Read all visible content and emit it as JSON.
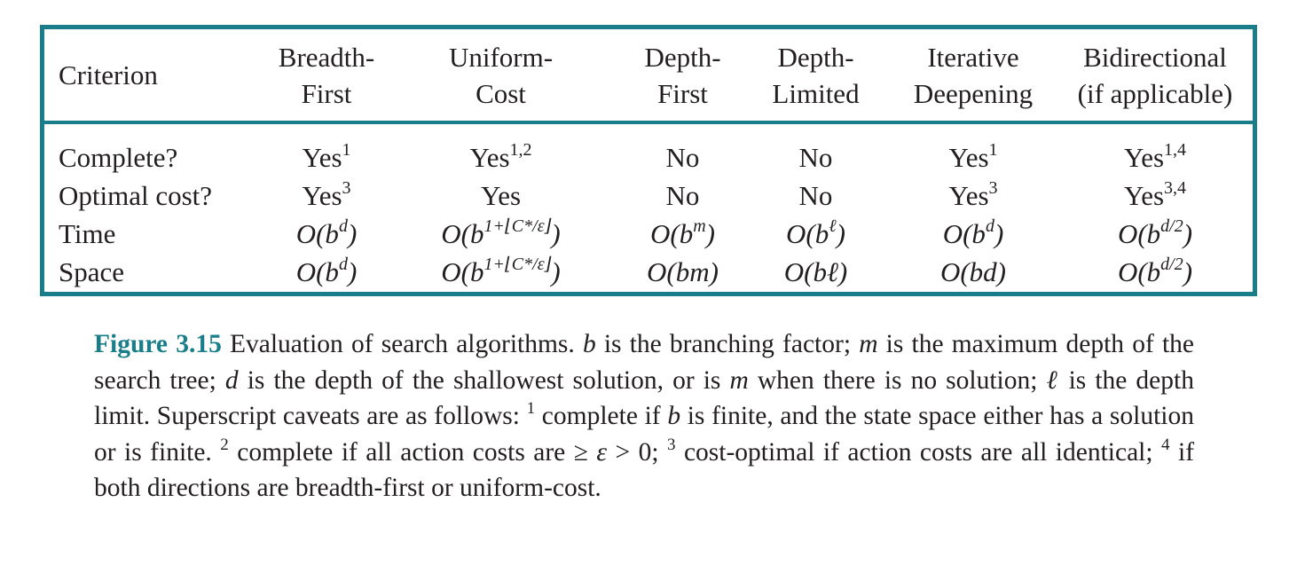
{
  "table": {
    "header": {
      "criterion": "Criterion",
      "columns": [
        {
          "line1": "Breadth-",
          "line2": "First"
        },
        {
          "line1": "Uniform-",
          "line2": "Cost"
        },
        {
          "line1": "Depth-",
          "line2": "First"
        },
        {
          "line1": "Depth-",
          "line2": "Limited"
        },
        {
          "line1": "Iterative",
          "line2": "Deepening"
        },
        {
          "line1": "Bidirectional",
          "line2": "(if applicable)"
        }
      ]
    },
    "rows": [
      {
        "label": "Complete?",
        "cells": [
          {
            "text": "Yes",
            "sup": "1"
          },
          {
            "text": "Yes",
            "sup": "1,2"
          },
          {
            "text": "No",
            "sup": ""
          },
          {
            "text": "No",
            "sup": ""
          },
          {
            "text": "Yes",
            "sup": "1"
          },
          {
            "text": "Yes",
            "sup": "1,4"
          }
        ]
      },
      {
        "label": "Optimal cost?",
        "cells": [
          {
            "text": "Yes",
            "sup": "3"
          },
          {
            "text": "Yes",
            "sup": ""
          },
          {
            "text": "No",
            "sup": ""
          },
          {
            "text": "No",
            "sup": ""
          },
          {
            "text": "Yes",
            "sup": "3"
          },
          {
            "text": "Yes",
            "sup": "3,4"
          }
        ]
      },
      {
        "label": "Time",
        "cells": [
          {
            "pre": "O(b",
            "sup": "d",
            "post": ")"
          },
          {
            "pre": "O(b",
            "sup": "1+⌊C*/ε⌋",
            "post": ")"
          },
          {
            "pre": "O(b",
            "sup": "m",
            "post": ")"
          },
          {
            "pre": "O(b",
            "sup": "ℓ",
            "post": ")"
          },
          {
            "pre": "O(b",
            "sup": "d",
            "post": ")"
          },
          {
            "pre": "O(b",
            "sup": "d/2",
            "post": ")"
          }
        ]
      },
      {
        "label": "Space",
        "cells": [
          {
            "pre": "O(b",
            "sup": "d",
            "post": ")"
          },
          {
            "pre": "O(b",
            "sup": "1+⌊C*/ε⌋",
            "post": ")"
          },
          {
            "pre": "O(bm)",
            "sup": "",
            "post": ""
          },
          {
            "pre": "O(bℓ)",
            "sup": "",
            "post": ""
          },
          {
            "pre": "O(bd)",
            "sup": "",
            "post": ""
          },
          {
            "pre": "O(b",
            "sup": "d/2",
            "post": ")"
          }
        ]
      }
    ]
  },
  "caption": {
    "label": "Figure 3.15",
    "t1": " Evaluation of search algorithms. ",
    "v_b": "b",
    "t2": " is the branching factor; ",
    "v_m": "m",
    "t3": " is the maximum depth of the search tree; ",
    "v_d": "d",
    "t4": " is the depth of the shallowest solution, or is ",
    "v_m2": "m",
    "t5": " when there is no solution; ",
    "v_l": "ℓ",
    "t6": " is the depth limit. Superscript caveats are as follows: ",
    "s1": "1",
    "t7": " complete if ",
    "v_b2": "b",
    "t8": " is finite, and the state space either has a solution or is finite. ",
    "s2": "2",
    "t9": " complete if all action costs are ≥ ",
    "v_eps": "ε",
    "t10": " > 0; ",
    "s3": "3",
    "t11": " cost-optimal if action costs are all identical; ",
    "s4": "4",
    "t12": " if both directions are breadth-first or uniform-cost."
  }
}
